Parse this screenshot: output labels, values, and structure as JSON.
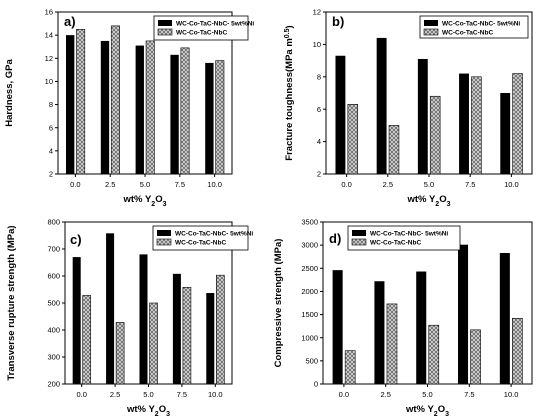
{
  "chart_data": [
    {
      "type": "bar",
      "panel_label": "a)",
      "categories": [
        "0.0",
        "2.5",
        "5.0",
        "7.5",
        "10.0"
      ],
      "series": [
        {
          "name": "WC-Co-TaC-NbC- 5wt%Ni",
          "values": [
            14.0,
            13.5,
            13.1,
            12.3,
            11.6
          ]
        },
        {
          "name": "WC-Co-TaC-NbC",
          "values": [
            14.5,
            14.8,
            13.5,
            12.9,
            11.8
          ]
        }
      ],
      "ylabel": "Hardness, GPa",
      "xlabel": "wt% Y2O3",
      "ylim": [
        2,
        16
      ],
      "yticks": [
        "2",
        "4",
        "6",
        "8",
        "10",
        "12",
        "14",
        "16"
      ],
      "legend": "top-right",
      "colors": [
        "#000000",
        "#bfbfbf"
      ]
    },
    {
      "type": "bar",
      "panel_label": "b)",
      "categories": [
        "0.0",
        "2.5",
        "5.0",
        "7.5",
        "10.0"
      ],
      "series": [
        {
          "name": "WC-Co-TaC-NbC- 5wt%Ni",
          "values": [
            9.3,
            10.4,
            9.1,
            8.2,
            7.0
          ]
        },
        {
          "name": "WC-Co-TaC-NbC",
          "values": [
            6.3,
            5.0,
            6.8,
            8.0,
            8.2
          ]
        }
      ],
      "ylabel": "Fracture toughness(MPa m0.5)",
      "xlabel": "wt% Y2O3",
      "ylim": [
        2,
        12
      ],
      "yticks": [
        "2",
        "4",
        "6",
        "8",
        "10",
        "12"
      ],
      "legend": "top-right",
      "colors": [
        "#000000",
        "#bfbfbf"
      ]
    },
    {
      "type": "bar",
      "panel_label": "c)",
      "categories": [
        "0.0",
        "2.5",
        "5.0",
        "7.5",
        "10.0"
      ],
      "series": [
        {
          "name": "WC-Co-TaC-NbC- 5wt%Ni",
          "values": [
            670,
            758,
            680,
            608,
            537
          ]
        },
        {
          "name": "WC-Co-TaC-NbC",
          "values": [
            528,
            428,
            500,
            558,
            603
          ]
        }
      ],
      "ylabel": "Transverse rupture strength (MPa)",
      "xlabel": "wt% Y2O3",
      "ylim": [
        200,
        800
      ],
      "yticks": [
        "200",
        "300",
        "400",
        "500",
        "600",
        "700",
        "800"
      ],
      "legend": "top-right",
      "colors": [
        "#000000",
        "#bfbfbf"
      ]
    },
    {
      "type": "bar",
      "panel_label": "d)",
      "categories": [
        "0.0",
        "2.5",
        "5.0",
        "7.5",
        "10.0"
      ],
      "series": [
        {
          "name": "WC-Co-TaC-NbC- 5wt%Ni",
          "values": [
            2460,
            2220,
            2430,
            3010,
            2830
          ]
        },
        {
          "name": "WC-Co-TaC-NbC",
          "values": [
            720,
            1730,
            1270,
            1170,
            1420
          ]
        }
      ],
      "ylabel": "Compressive strength (MPa)",
      "xlabel": "wt% Y2O3",
      "ylim": [
        0,
        3500
      ],
      "yticks": [
        "0",
        "500",
        "1000",
        "1500",
        "2000",
        "2500",
        "3000",
        "3500"
      ],
      "legend": "top-left",
      "colors": [
        "#000000",
        "#bfbfbf"
      ]
    }
  ]
}
